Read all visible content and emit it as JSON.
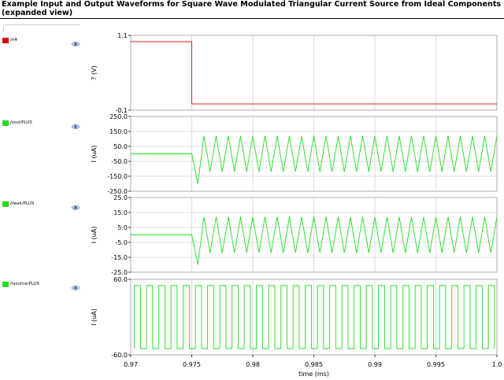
{
  "title": "Example Input and Output Waveforms for Square Wave Modulated Triangular Current Source from Ideal Components (expanded view)",
  "traces": [
    {
      "name": "/n4",
      "color": "#dd0000",
      "icon": "eye-icon"
    },
    {
      "name": "/iout/PLUS",
      "color": "#22dd22",
      "icon": "eye-icon"
    },
    {
      "name": "/ileak/PLUS",
      "color": "#22dd22",
      "icon": "eye-icon"
    },
    {
      "name": "/isource/PLUS",
      "color": "#22dd22",
      "icon": "eye-icon"
    }
  ],
  "chart_data": [
    {
      "type": "line",
      "series_name": "/n4",
      "ylabel": "? (V)",
      "ylim": [
        -0.1,
        1.1
      ],
      "y_ticks": [
        "1.1",
        "-0.1"
      ],
      "y_tick_values": [
        1.1,
        -0.1
      ],
      "x": [
        0.97,
        0.975,
        0.975,
        1.0
      ],
      "y": [
        1.0,
        1.0,
        0.0,
        0.0
      ],
      "color": "#dd0000"
    },
    {
      "type": "line",
      "series_name": "/iout/PLUS",
      "ylabel": "I (uA)",
      "ylim": [
        -250.0,
        250.0
      ],
      "y_ticks": [
        "250.0",
        "150.0",
        "50.0",
        "-50.0",
        "-150.0",
        "-250.0"
      ],
      "y_tick_values": [
        250,
        150,
        50,
        -50,
        -150,
        -250
      ],
      "baseline": 0,
      "start": 0.975,
      "first_min": -200,
      "amplitude": 120,
      "period": 0.001,
      "end": 1.0,
      "color": "#22dd22"
    },
    {
      "type": "line",
      "series_name": "/ileak/PLUS",
      "ylabel": "I (uA)",
      "ylim": [
        -25.0,
        25.0
      ],
      "y_ticks": [
        "25.0",
        "15.0",
        "5.0",
        "-5.0",
        "-15.0",
        "-25.0"
      ],
      "y_tick_values": [
        25,
        15,
        5,
        -5,
        -15,
        -25
      ],
      "baseline": 0,
      "start": 0.975,
      "first_min": -20,
      "amplitude": 12,
      "period": 0.001,
      "end": 1.0,
      "color": "#22dd22"
    },
    {
      "type": "line",
      "series_name": "/isource/PLUS",
      "ylabel": "I (uA)",
      "ylim": [
        -60.0,
        60.0
      ],
      "y_ticks": [
        "60.0",
        "-60.0"
      ],
      "y_tick_values": [
        60,
        -60
      ],
      "high": 50,
      "low": -50,
      "period": 0.001,
      "phase": 0.0003,
      "end": 1.0,
      "color": "#22dd22"
    }
  ],
  "x_axis": {
    "label": "time (ms)",
    "min": 0.97,
    "max": 1.0,
    "ticks": [
      "0.97",
      "0.975",
      "0.98",
      "0.985",
      "0.99",
      "0.995",
      "1.0"
    ],
    "tick_values": [
      0.97,
      0.975,
      0.98,
      0.985,
      0.99,
      0.995,
      1.0
    ]
  }
}
